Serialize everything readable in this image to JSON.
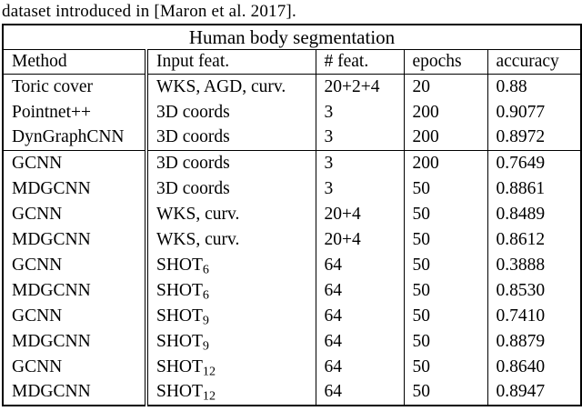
{
  "caption": "dataset introduced in [Maron et al. 2017].",
  "colors": {
    "background": "#ffffff",
    "text": "#000000",
    "border": "#000000"
  },
  "table": {
    "title": "Human body segmentation",
    "columns": [
      "Method",
      "Input feat.",
      "# feat.",
      "epochs",
      "accuracy"
    ],
    "rows": [
      {
        "method": "Toric cover",
        "method_bold": false,
        "input": "WKS, AGD, curv.",
        "input_sub": "",
        "nfeat": "20+2+4",
        "epochs": "20",
        "accuracy": "0.88",
        "accuracy_bold": false,
        "group_end": false
      },
      {
        "method": "Pointnet++",
        "method_bold": false,
        "input": "3D coords",
        "input_sub": "",
        "nfeat": "3",
        "epochs": "200",
        "accuracy": "0.9077",
        "accuracy_bold": true,
        "group_end": false
      },
      {
        "method": "DynGraphCNN",
        "method_bold": false,
        "input": "3D coords",
        "input_sub": "",
        "nfeat": "3",
        "epochs": "200",
        "accuracy": "0.8972",
        "accuracy_bold": false,
        "group_end": true
      },
      {
        "method": "GCNN",
        "method_bold": false,
        "input": "3D coords",
        "input_sub": "",
        "nfeat": "3",
        "epochs": "200",
        "accuracy": "0.7649",
        "accuracy_bold": false,
        "group_end": false
      },
      {
        "method": "MDGCNN",
        "method_bold": true,
        "input": "3D coords",
        "input_sub": "",
        "nfeat": "3",
        "epochs": "50",
        "accuracy": "0.8861",
        "accuracy_bold": true,
        "group_end": false
      },
      {
        "method": "GCNN",
        "method_bold": false,
        "input": "WKS, curv.",
        "input_sub": "",
        "nfeat": "20+4",
        "epochs": "50",
        "accuracy": "0.8489",
        "accuracy_bold": false,
        "group_end": false
      },
      {
        "method": "MDGCNN",
        "method_bold": true,
        "input": "WKS, curv.",
        "input_sub": "",
        "nfeat": "20+4",
        "epochs": "50",
        "accuracy": "0.8612",
        "accuracy_bold": true,
        "group_end": false
      },
      {
        "method": "GCNN",
        "method_bold": false,
        "input": "SHOT",
        "input_sub": "6",
        "nfeat": "64",
        "epochs": "50",
        "accuracy": "0.3888",
        "accuracy_bold": false,
        "group_end": false
      },
      {
        "method": "MDGCNN",
        "method_bold": true,
        "input": "SHOT",
        "input_sub": "6",
        "nfeat": "64",
        "epochs": "50",
        "accuracy": "0.8530",
        "accuracy_bold": true,
        "group_end": false
      },
      {
        "method": "GCNN",
        "method_bold": false,
        "input": "SHOT",
        "input_sub": "9",
        "nfeat": "64",
        "epochs": "50",
        "accuracy": "0.7410",
        "accuracy_bold": false,
        "group_end": false
      },
      {
        "method": "MDGCNN",
        "method_bold": true,
        "input": "SHOT",
        "input_sub": "9",
        "nfeat": "64",
        "epochs": "50",
        "accuracy": "0.8879",
        "accuracy_bold": true,
        "group_end": false
      },
      {
        "method": "GCNN",
        "method_bold": false,
        "input": "SHOT",
        "input_sub": "12",
        "nfeat": "64",
        "epochs": "50",
        "accuracy": "0.8640",
        "accuracy_bold": false,
        "group_end": false
      },
      {
        "method": "MDGCNN",
        "method_bold": true,
        "input": "SHOT",
        "input_sub": "12",
        "nfeat": "64",
        "epochs": "50",
        "accuracy": "0.8947",
        "accuracy_bold": true,
        "group_end": false
      }
    ]
  }
}
